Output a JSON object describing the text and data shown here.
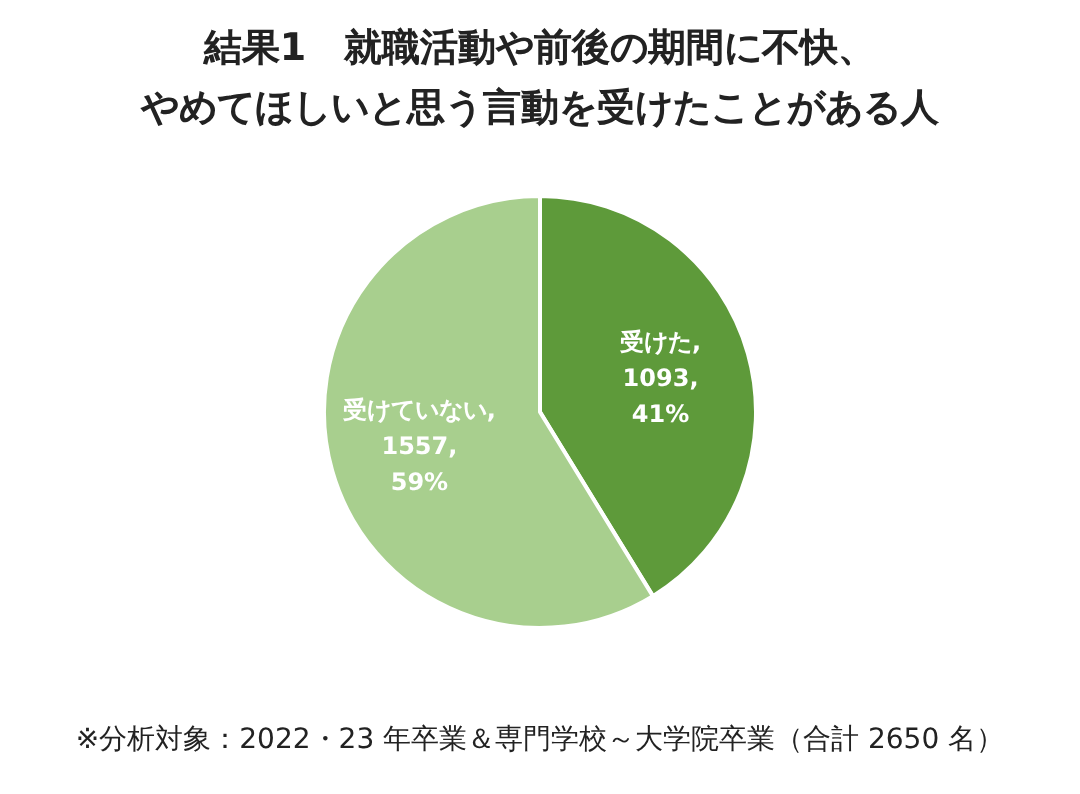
{
  "chart_data": {
    "type": "pie",
    "title": "結果1　就職活動や前後の期間に不快、",
    "subtitle": "やめてほしいと思う言動を受けたことがある人",
    "categories": [
      "受けた",
      "受けていない"
    ],
    "values": [
      1093,
      1557
    ],
    "colors": [
      "#5e9a3a",
      "#a8cf8e"
    ],
    "value_labels": [
      ",\n1093,\n41%",
      ",\n1557,\n59%"
    ],
    "annotations": [
      "※分析対象：2022・23 年卒業＆専門学校～大学院卒業（合計 2650 名）"
    ]
  }
}
